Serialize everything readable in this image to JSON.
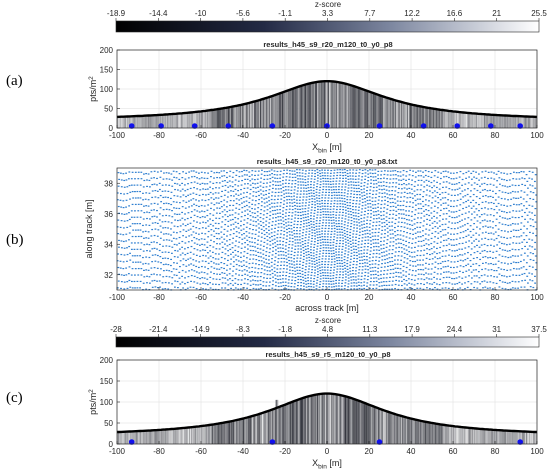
{
  "colors": {
    "dark": "#000000",
    "light": "#ffffff",
    "blue_dot": "#1010ee",
    "scatter_blue": "#2f7fd0",
    "axis": "#262626"
  },
  "panel_labels": [
    "(a)",
    "(b)",
    "(c)"
  ],
  "chart_data": [
    {
      "type": "bar",
      "title": "results_h45_s9_r20_m120_t0_y0_p8",
      "xlabel": "X",
      "xlabel_sub": "bin",
      "xlabel_unit": " [m]",
      "ylabel": "pts/m",
      "ylabel_sup": "2",
      "xlim": [
        -100,
        100
      ],
      "ylim": [
        0,
        200
      ],
      "xticks": [
        -100,
        -80,
        -60,
        -40,
        -20,
        0,
        20,
        40,
        60,
        80,
        100
      ],
      "yticks": [
        0,
        50,
        100,
        150,
        200
      ],
      "grid": true,
      "envelope": {
        "peak_value": 120,
        "center": 0,
        "tail_value": 18
      },
      "markers_x": [
        -93,
        -79,
        -63,
        -47,
        -26,
        0,
        25,
        46,
        62,
        78,
        92
      ],
      "colorbar": {
        "label": "z-score",
        "tick_labels": [
          "-18.9",
          "-14.4",
          "-10",
          "-5.6",
          "-1.1",
          "3.3",
          "7.7",
          "12.2",
          "16.6",
          "21",
          "25.5"
        ]
      }
    },
    {
      "type": "scatter",
      "title": "results_h45_s9_r20_m120_t0_y0_p8.txt",
      "xlabel": "across track [m]",
      "ylabel": "along track [m]",
      "xlim": [
        -100,
        100
      ],
      "ylim": [
        31,
        39
      ],
      "xticks": [
        -100,
        -80,
        -60,
        -40,
        -20,
        0,
        20,
        40,
        60,
        80,
        100
      ],
      "yticks": [
        32,
        34,
        36,
        38
      ],
      "grid": false
    },
    {
      "type": "bar",
      "title": "results_h45_s9_r5_m120_t0_y0_p8",
      "xlabel": "X",
      "xlabel_sub": "bin",
      "xlabel_unit": " [m]",
      "ylabel": "pts/m",
      "ylabel_sup": "2",
      "xlim": [
        -100,
        100
      ],
      "ylim": [
        0,
        200
      ],
      "xticks": [
        -100,
        -80,
        -60,
        -40,
        -20,
        0,
        20,
        40,
        60,
        80,
        100
      ],
      "yticks": [
        0,
        50,
        100,
        150,
        200
      ],
      "grid": true,
      "envelope": {
        "peak_value": 120,
        "center": 0,
        "tail_value": 18
      },
      "spike": {
        "x": -24,
        "value": 105
      },
      "markers_x": [
        -93,
        -26,
        25,
        92
      ],
      "colorbar": {
        "label": "z-score",
        "tick_labels": [
          "-28",
          "-21.4",
          "-14.9",
          "-8.3",
          "-1.8",
          "4.8",
          "11.3",
          "17.9",
          "24.4",
          "31",
          "37.5"
        ]
      }
    }
  ]
}
